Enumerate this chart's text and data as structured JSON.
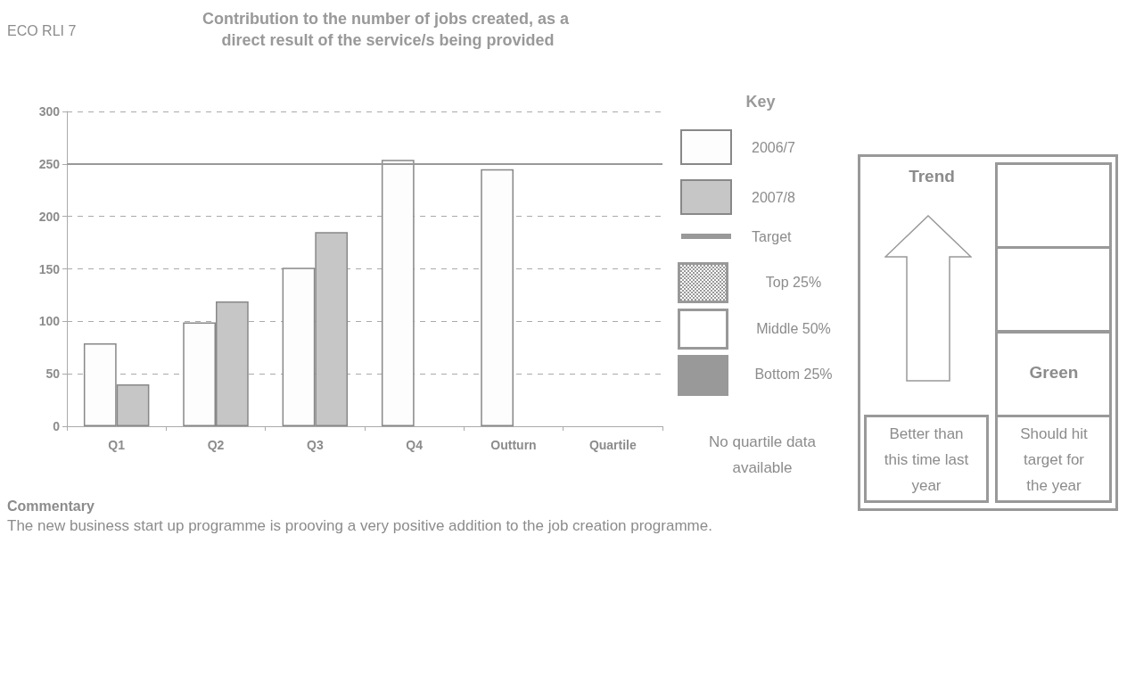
{
  "chart_data": {
    "type": "bar",
    "title": "Contribution to the number of jobs created, as a direct result of the service/s being provided",
    "categories": [
      "Q1",
      "Q2",
      "Q3",
      "Q4",
      "Outturn",
      "Quartile"
    ],
    "series": [
      {
        "name": "2006/7",
        "color": "#fdfdfd",
        "values": [
          79,
          99,
          151,
          254,
          245,
          null
        ]
      },
      {
        "name": "2007/8",
        "color": "#c6c6c6",
        "values": [
          40,
          119,
          185,
          null,
          null,
          null
        ]
      }
    ],
    "ylim": [
      0,
      300
    ],
    "yticks": [
      0,
      50,
      100,
      150,
      200,
      250,
      300
    ],
    "grid": "y",
    "legend": "right",
    "legend_title": "Key",
    "ref_lines": [
      {
        "axis": "y",
        "value": 250,
        "label": "Target",
        "color": "#999999"
      }
    ],
    "annotations": [
      "ECO RLI 7",
      "Top 25%",
      "Middle 50%",
      "Bottom 25%",
      "No quartile data available",
      "Trend",
      "Green",
      "Better than this time last year",
      "Should hit target for the year",
      "Commentary",
      "The new business start up programme is prooving a very positive addition to the job creation programme."
    ]
  }
}
